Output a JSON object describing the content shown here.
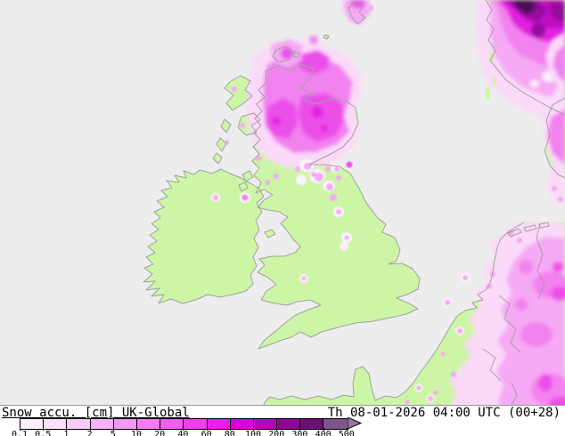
{
  "footer": {
    "product_label": "Snow accu. [cm] UK-Global",
    "valid_time": "Th 08-01-2026 04:00 UTC (00+28)"
  },
  "legend": {
    "labels": [
      "0.1",
      "0.5",
      "1",
      "2",
      "5",
      "10",
      "20",
      "40",
      "60",
      "80",
      "100",
      "200",
      "300",
      "400",
      "500"
    ],
    "cell_colors": [
      "#fdf1fd",
      "#fbdffb",
      "#f9cbf9",
      "#f7b2f7",
      "#f598f5",
      "#f37cf3",
      "#f15ef1",
      "#ef3fef",
      "#ed1ced",
      "#d900db",
      "#b402b9",
      "#8f0696",
      "#6a1272",
      "#7d5589"
    ],
    "arrow_color": "#91779b"
  },
  "colors": {
    "sea": "#ededed",
    "land": "#cdf5a6",
    "coastline": "#a2a2a2",
    "border": "#9b9b9b",
    "snow_fringe": "#fbd9f9",
    "snow_light": "#f6a9f4",
    "snow_mid": "#f282ef",
    "snow_strong": "#ec4fe9",
    "snow_deep": "#e324e0",
    "snow_violet": "#c00cc5",
    "snow_dark": "#91089a",
    "snow_darker": "#680a72",
    "snow_darkest": "#4b0c55",
    "snow_white": "#fdf2fd",
    "footer_bg": "#ffffff",
    "text": "#000000"
  },
  "chart_data": {
    "type": "heatmap",
    "title": "Snow accu. [cm] UK-Global",
    "valid": "Th 08-01-2026 04:00 UTC (00+28)",
    "unit": "cm",
    "levels": [
      0.1,
      0.5,
      1,
      2,
      5,
      10,
      20,
      40,
      60,
      80,
      100,
      200,
      300,
      400,
      500
    ],
    "regions": [
      {
        "area": "Scotland (Highlands/Grampians)",
        "snow_accu_cm": "5-60"
      },
      {
        "area": "Orkney / Shetland",
        "snow_accu_cm": "1-40"
      },
      {
        "area": "Norway (top-right corner)",
        "snow_accu_cm": "100-500"
      },
      {
        "area": "Denmark / right map edge",
        "snow_accu_cm": "1-20"
      },
      {
        "area": "Germany / Benelux east (bottom-right)",
        "snow_accu_cm": "1-60"
      },
      {
        "area": "Northern England Pennines",
        "snow_accu_cm": "0.1-5 (speckles)"
      },
      {
        "area": "Northern Ireland",
        "snow_accu_cm": "0.1-2 (speckles)"
      },
      {
        "area": "Ireland / S England / N France",
        "snow_accu_cm": "0 (snow-free, green)"
      }
    ]
  }
}
